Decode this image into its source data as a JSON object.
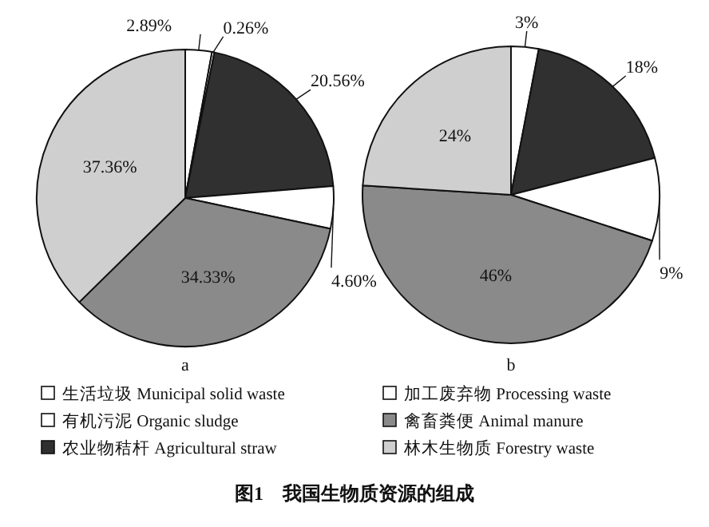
{
  "chart_data": [
    {
      "type": "pie",
      "title": "a",
      "categories": [
        "生活垃圾 Municipal solid waste",
        "有机污泥 Organic sludge",
        "农业物秸杆 Agricultural straw",
        "加工废弃物 Processing waste",
        "禽畜粪便 Animal manure",
        "林木生物质 Forestry waste"
      ],
      "values": [
        2.89,
        0.26,
        20.56,
        4.6,
        34.33,
        37.36
      ],
      "value_labels": [
        "2.89%",
        "0.26%",
        "20.56%",
        "4.60%",
        "34.33%",
        "37.36%"
      ],
      "colors": [
        "#ffffff",
        "#ffffff",
        "#303030",
        "#ffffff",
        "#8a8a8a",
        "#cfcfcf"
      ],
      "legend": "bottom",
      "annotations": [
        "图1　我国生物质资源的组成"
      ]
    },
    {
      "type": "pie",
      "title": "b",
      "categories": [
        null,
        null,
        null,
        null,
        null
      ],
      "values": [
        3,
        18,
        9,
        46,
        24
      ],
      "value_labels": [
        "3%",
        "18%",
        "9%",
        "46%",
        "24%"
      ],
      "colors": [
        "#ffffff",
        "#303030",
        "#ffffff",
        "#8a8a8a",
        "#cfcfcf"
      ]
    }
  ]
}
